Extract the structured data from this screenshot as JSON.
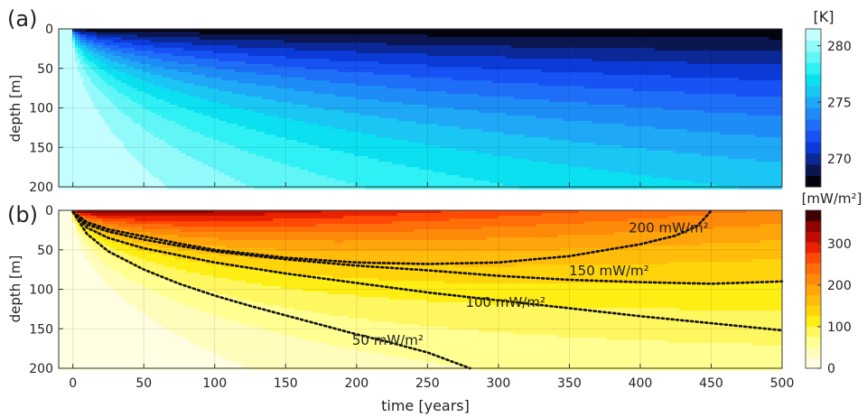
{
  "chart_data": [
    {
      "type": "heatmap",
      "panel_label": "(a)",
      "quantity": "temperature",
      "ylabel": "depth [m]",
      "xlim": [
        -10,
        500
      ],
      "ylim": [
        0,
        200
      ],
      "y_reversed": true,
      "x_ticks": [
        0,
        50,
        100,
        150,
        200,
        250,
        300,
        350,
        400,
        450,
        500
      ],
      "y_ticks": [
        0,
        50,
        100,
        150,
        200
      ],
      "grid": true,
      "colorbar": {
        "title": "[K]",
        "range": [
          267.5,
          281.5
        ],
        "ticks": [
          270,
          275,
          280
        ],
        "levels": 14,
        "colors": [
          "#04040e",
          "#0b1650",
          "#0a2896",
          "#0b3ad8",
          "#1652f4",
          "#1f6ef8",
          "#1e8cf6",
          "#1ea8f6",
          "#19c6f4",
          "#0ae0f0",
          "#2ff0f4",
          "#60f6f6",
          "#92fafa",
          "#c4fefe"
        ]
      },
      "model": {
        "surface_value": 267.7,
        "deep_value": 281.4,
        "x_start": 0
      }
    },
    {
      "type": "heatmap",
      "panel_label": "(b)",
      "quantity": "heat flux",
      "xlabel": "time [years]",
      "ylabel": "depth [m]",
      "xlim": [
        -10,
        500
      ],
      "ylim": [
        0,
        200
      ],
      "y_reversed": true,
      "x_ticks": [
        0,
        50,
        100,
        150,
        200,
        250,
        300,
        350,
        400,
        450,
        500
      ],
      "y_ticks": [
        0,
        50,
        100,
        150,
        200
      ],
      "grid": true,
      "colorbar": {
        "title": "[mW/m²]",
        "range": [
          0,
          380
        ],
        "ticks": [
          0,
          100,
          200,
          300
        ],
        "levels": 15,
        "colors": [
          "#fffde2",
          "#fffcbc",
          "#ffff92",
          "#fff760",
          "#ffee14",
          "#ffd40a",
          "#ffbc0a",
          "#ffa40a",
          "#ff8a0a",
          "#ff6e08",
          "#ff4a06",
          "#ea2200",
          "#c00c00",
          "#8e0400",
          "#3e0000"
        ]
      },
      "contours": [
        {
          "label": "50 mW/m²",
          "value": 50,
          "points": [
            [
              0,
              2
            ],
            [
              10,
              30
            ],
            [
              25,
              52
            ],
            [
              50,
              75
            ],
            [
              75,
              93
            ],
            [
              100,
              108
            ],
            [
              125,
              121
            ],
            [
              150,
              133
            ],
            [
              175,
              145
            ],
            [
              200,
              157
            ],
            [
              225,
              168
            ],
            [
              250,
              180
            ],
            [
              280,
              200
            ]
          ]
        },
        {
          "label": "100 mW/m²",
          "value": 100,
          "points": [
            [
              0,
              2
            ],
            [
              10,
              22
            ],
            [
              25,
              35
            ],
            [
              50,
              48
            ],
            [
              75,
              57
            ],
            [
              100,
              66
            ],
            [
              125,
              73
            ],
            [
              150,
              80
            ],
            [
              200,
              92
            ],
            [
              250,
              104
            ],
            [
              300,
              114
            ],
            [
              350,
              124
            ],
            [
              400,
              134
            ],
            [
              450,
              143
            ],
            [
              500,
              152
            ]
          ]
        },
        {
          "label": "150 mW/m²",
          "value": 150,
          "points": [
            [
              0,
              2
            ],
            [
              10,
              18
            ],
            [
              25,
              27
            ],
            [
              50,
              37
            ],
            [
              75,
              45
            ],
            [
              100,
              52
            ],
            [
              150,
              62
            ],
            [
              200,
              70
            ],
            [
              250,
              76
            ],
            [
              300,
              83
            ],
            [
              350,
              88
            ],
            [
              400,
              91
            ],
            [
              450,
              93
            ],
            [
              500,
              90
            ]
          ]
        },
        {
          "label": "200 mW/m²",
          "value": 200,
          "points": [
            [
              0,
              2
            ],
            [
              10,
              15
            ],
            [
              25,
              24
            ],
            [
              50,
              33
            ],
            [
              75,
              42
            ],
            [
              100,
              50
            ],
            [
              150,
              60
            ],
            [
              200,
              66
            ],
            [
              250,
              68
            ],
            [
              300,
              66
            ],
            [
              350,
              58
            ],
            [
              400,
              43
            ],
            [
              425,
              32
            ],
            [
              440,
              20
            ],
            [
              448,
              5
            ],
            [
              450,
              0
            ]
          ]
        }
      ],
      "contour_label_positions": [
        {
          "label": "200 mW/m²",
          "x": 420,
          "y": 28
        },
        {
          "label": "150 mW/m²",
          "x": 378,
          "y": 82
        },
        {
          "label": "100 mW/m²",
          "x": 305,
          "y": 122
        },
        {
          "label": "50 mW/m²",
          "x": 222,
          "y": 170
        }
      ]
    }
  ]
}
